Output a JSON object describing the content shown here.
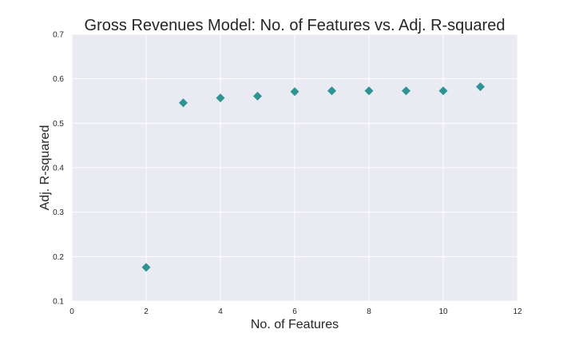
{
  "chart_data": {
    "type": "scatter",
    "title": "Gross Revenues Model: No. of Features vs. Adj. R-squared",
    "xlabel": "No. of Features",
    "ylabel": "Adj. R-squared",
    "xlim": [
      0,
      12
    ],
    "ylim": [
      0.1,
      0.7
    ],
    "xticks": [
      "0",
      "2",
      "4",
      "6",
      "8",
      "10",
      "12"
    ],
    "yticks": [
      "0.1",
      "0.2",
      "0.3",
      "0.4",
      "0.5",
      "0.6",
      "0.7"
    ],
    "grid": true,
    "marker": "diamond",
    "colors": {
      "background": "#eaeaf2",
      "grid": "#ffffff",
      "marker": "#2e9393"
    },
    "x": [
      2,
      3,
      4,
      5,
      6,
      7,
      8,
      9,
      10,
      11
    ],
    "y": [
      0.176,
      0.546,
      0.557,
      0.561,
      0.571,
      0.573,
      0.573,
      0.573,
      0.573,
      0.582
    ]
  }
}
